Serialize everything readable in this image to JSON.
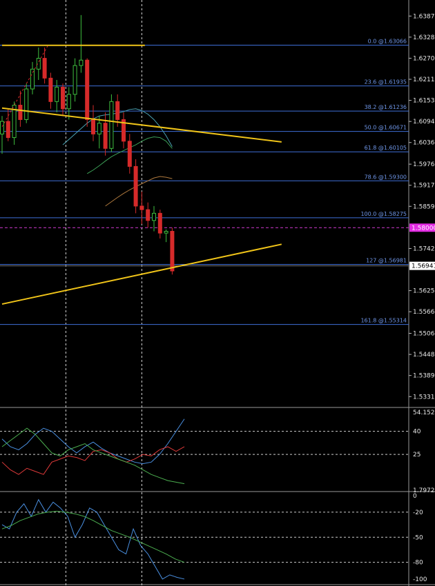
{
  "chart_data": [
    {
      "type": "candlestick",
      "yaxis_ticks": [
        1.63873,
        1.63288,
        1.62703,
        1.62118,
        1.61533,
        1.60948,
        1.60363,
        1.59763,
        1.59178,
        1.58593,
        1.57423,
        1.56253,
        1.55668,
        1.55068,
        1.54483,
        1.53898,
        1.53313
      ],
      "ylim": [
        1.5305,
        1.6428
      ],
      "bid_label": "1.58000",
      "bid_price": 1.58,
      "price_label": "1.56941",
      "price": 1.56941,
      "fibonacci": [
        {
          "label": "0.0 @1.63066",
          "price": 1.63066
        },
        {
          "label": "23.6 @1.61935",
          "price": 1.61935
        },
        {
          "label": "38.2 @1.61236",
          "price": 1.61236
        },
        {
          "label": "50.0 @1.60671",
          "price": 1.60671
        },
        {
          "label": "61.8 @1.60105",
          "price": 1.60105
        },
        {
          "label": "78.6 @1.59300",
          "price": 1.593
        },
        {
          "label": "100.0 @1.58275",
          "price": 1.58275
        },
        {
          "label": "127 @1.56981",
          "price": 1.56981
        },
        {
          "label": "161.8 @1.55314",
          "price": 1.55314
        }
      ],
      "candles": [
        [
          1.606,
          1.611,
          1.6005,
          1.6095
        ],
        [
          1.6095,
          1.613,
          1.604,
          1.605
        ],
        [
          1.605,
          1.615,
          1.603,
          1.614
        ],
        [
          1.614,
          1.618,
          1.608,
          1.61
        ],
        [
          1.61,
          1.62,
          1.609,
          1.6185
        ],
        [
          1.6185,
          1.626,
          1.617,
          1.624
        ],
        [
          1.624,
          1.63,
          1.621,
          1.627
        ],
        [
          1.627,
          1.63,
          1.62,
          1.6215
        ],
        [
          1.6215,
          1.623,
          1.613,
          1.615
        ],
        [
          1.615,
          1.621,
          1.612,
          1.619
        ],
        [
          1.619,
          1.62,
          1.611,
          1.613
        ],
        [
          1.613,
          1.619,
          1.61,
          1.617
        ],
        [
          1.617,
          1.627,
          1.615,
          1.625
        ],
        [
          1.625,
          1.639,
          1.623,
          1.6265
        ],
        [
          1.6265,
          1.627,
          1.608,
          1.61
        ],
        [
          1.61,
          1.614,
          1.604,
          1.606
        ],
        [
          1.606,
          1.611,
          1.602,
          1.609
        ],
        [
          1.609,
          1.612,
          1.6,
          1.602
        ],
        [
          1.602,
          1.617,
          1.601,
          1.615
        ],
        [
          1.615,
          1.617,
          1.608,
          1.61
        ],
        [
          1.61,
          1.612,
          1.602,
          1.604
        ],
        [
          1.604,
          1.606,
          1.595,
          1.597
        ],
        [
          1.597,
          1.599,
          1.584,
          1.586
        ],
        [
          1.586,
          1.59,
          1.581,
          1.585
        ],
        [
          1.585,
          1.587,
          1.58,
          1.582
        ],
        [
          1.582,
          1.586,
          1.579,
          1.584
        ],
        [
          1.584,
          1.585,
          1.577,
          1.5785
        ],
        [
          1.5785,
          1.5795,
          1.576,
          1.579
        ],
        [
          1.579,
          1.58,
          1.567,
          1.568
        ]
      ],
      "moving_averages": [
        {
          "color": "#4aa3b5",
          "values": [
            1.603,
            1.6045,
            1.606,
            1.6075,
            1.609,
            1.6102,
            1.611,
            1.6113,
            1.6115,
            1.6118,
            1.6122,
            1.6128,
            1.613,
            1.6125,
            1.6115,
            1.61,
            1.608,
            1.6055,
            1.6025
          ]
        },
        {
          "color": "#3c9f57",
          "values": [
            1.595,
            1.596,
            1.5972,
            1.5985,
            1.5997,
            1.6006,
            1.6014,
            1.6022,
            1.603,
            1.604,
            1.6048,
            1.6052,
            1.605,
            1.604,
            1.602
          ]
        },
        {
          "color": "#b07a3e",
          "values": [
            1.586,
            1.5872,
            1.5884,
            1.5895,
            1.5905,
            1.5914,
            1.5922,
            1.593,
            1.5938,
            1.5942,
            1.594,
            1.5936
          ]
        }
      ],
      "trendlines": [
        {
          "color": "#f0c419",
          "from": [
            0,
            1.6132
          ],
          "to": [
            46,
            1.6038
          ]
        },
        {
          "color": "#f0c419",
          "from": [
            0,
            1.5588
          ],
          "to": [
            46,
            1.5754
          ]
        },
        {
          "color": "#f0c419",
          "from": [
            0,
            1.6306
          ],
          "to": [
            23.5,
            1.6306
          ]
        }
      ],
      "vertical_markers": [
        10.5,
        23
      ]
    },
    {
      "type": "line",
      "yaxis_ticks": [
        54.1523,
        40,
        25,
        1.7972
      ],
      "ylim": [
        1.7972,
        54.1523
      ],
      "series": [
        {
          "color": "#4a90e2",
          "values": [
            35,
            30,
            28,
            32,
            38,
            42,
            40,
            35,
            30,
            26,
            30,
            33,
            29,
            26,
            24,
            22,
            20,
            19,
            20,
            25,
            32,
            40,
            48
          ]
        },
        {
          "color": "#e03a3a",
          "values": [
            20,
            15,
            12,
            16,
            14,
            12,
            20,
            22,
            24,
            23,
            21,
            27,
            28,
            26,
            22,
            20,
            22,
            25,
            24,
            28,
            30,
            27,
            30
          ]
        },
        {
          "color": "#4caf50",
          "values": [
            30,
            34,
            38,
            42,
            38,
            32,
            26,
            24,
            28,
            30,
            32,
            28,
            26,
            24,
            22,
            20,
            18,
            15,
            12,
            10,
            8,
            7,
            6
          ]
        }
      ],
      "reference_lines": [
        40,
        25
      ]
    },
    {
      "type": "line",
      "yaxis_ticks": [
        0,
        -20,
        -50,
        -80,
        -100
      ],
      "ylim": [
        -105,
        3
      ],
      "series": [
        {
          "color": "#4a90e2",
          "values": [
            -35,
            -40,
            -20,
            -10,
            -25,
            -5,
            -20,
            -8,
            -15,
            -25,
            -50,
            -35,
            -15,
            -20,
            -35,
            -50,
            -65,
            -70,
            -40,
            -60,
            -70,
            -85,
            -100,
            -95,
            -98,
            -100
          ]
        },
        {
          "color": "#4caf50",
          "values": [
            -40,
            -36,
            -30,
            -26,
            -22,
            -20,
            -19,
            -20,
            -22,
            -25,
            -30,
            -36,
            -42,
            -46,
            -50,
            -55,
            -60,
            -65,
            -70,
            -76,
            -80
          ]
        }
      ],
      "reference_lines": [
        -20,
        -50,
        -80
      ]
    }
  ]
}
